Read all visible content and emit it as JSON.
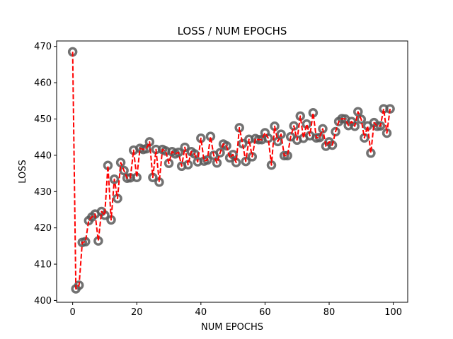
{
  "chart_data": {
    "type": "line",
    "title": "LOSS / NUM EPOCHS",
    "xlabel": "NUM EPOCHS",
    "ylabel": "LOSS",
    "xlim": [
      -5,
      104.5
    ],
    "ylim": [
      399.5,
      471.5
    ],
    "x_ticks": [
      0,
      20,
      40,
      60,
      80,
      100
    ],
    "y_ticks": [
      400,
      410,
      420,
      430,
      440,
      450,
      460,
      470
    ],
    "grid": false,
    "legend": "none",
    "marker_color": "#595959",
    "line_color": "#ff0000",
    "line_style": "dashed",
    "series": [
      {
        "x": [
          0,
          1,
          2,
          3,
          4,
          5,
          6,
          7,
          8,
          9,
          10,
          11,
          12,
          13,
          14,
          15,
          16,
          17,
          18,
          19,
          20,
          21,
          22,
          23,
          24,
          25,
          26,
          27,
          28,
          29,
          30,
          31,
          32,
          33,
          34,
          35,
          36,
          37,
          38,
          39,
          40,
          41,
          42,
          43,
          44,
          45,
          46,
          47,
          48,
          49,
          50,
          51,
          52,
          53,
          54,
          55,
          56,
          57,
          58,
          59,
          60,
          61,
          62,
          63,
          64,
          65,
          66,
          67,
          68,
          69,
          70,
          71,
          72,
          73,
          74,
          75,
          76,
          77,
          78,
          79,
          80,
          81,
          82,
          83,
          84,
          85,
          86,
          87,
          88,
          89,
          90,
          91,
          92,
          93,
          94,
          95,
          96,
          97,
          98,
          99
        ],
        "values": [
          468.5,
          403.2,
          404.2,
          416.0,
          416.2,
          422.0,
          423.0,
          423.8,
          416.4,
          424.5,
          423.5,
          437.2,
          422.2,
          433.4,
          428.1,
          438.0,
          435.8,
          433.7,
          433.8,
          441.4,
          433.9,
          441.9,
          441.6,
          441.8,
          443.7,
          433.9,
          441.6,
          432.6,
          441.6,
          441.2,
          437.8,
          441.0,
          440.4,
          440.8,
          437.0,
          442.2,
          437.4,
          441.0,
          440.4,
          438.2,
          444.7,
          438.4,
          438.7,
          445.2,
          440.0,
          437.9,
          440.7,
          443.1,
          442.6,
          439.3,
          440.2,
          438.0,
          447.6,
          443.2,
          438.3,
          444.4,
          439.6,
          444.6,
          444.3,
          444.3,
          446.2,
          444.7,
          437.3,
          448.0,
          443.8,
          445.8,
          439.9,
          439.9,
          445.1,
          448.1,
          444.2,
          450.8,
          444.7,
          448.6,
          445.4,
          451.7,
          444.8,
          444.9,
          447.3,
          442.5,
          443.7,
          442.8,
          446.5,
          449.3,
          450.1,
          450.0,
          448.2,
          449.3,
          448.0,
          452.0,
          449.9,
          444.8,
          448.1,
          440.6,
          449.0,
          448.0,
          448.1,
          452.8,
          446.1,
          452.8
        ]
      }
    ]
  }
}
